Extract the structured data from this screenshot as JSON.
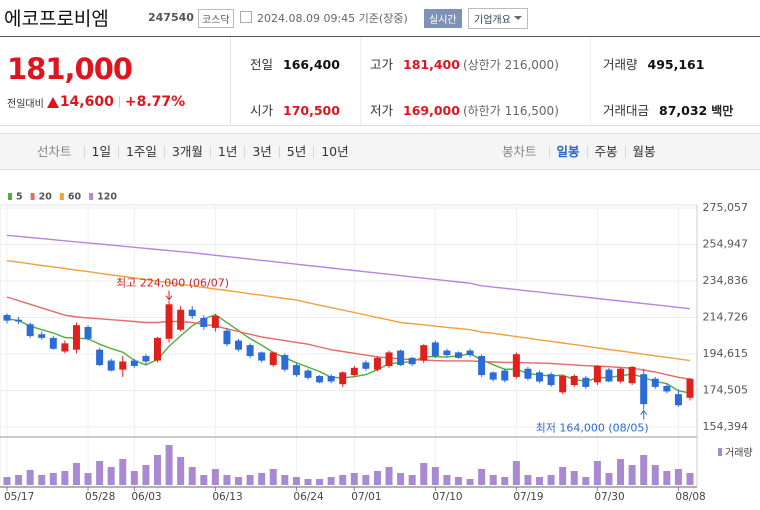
{
  "header": {
    "name": "에코프로비엠",
    "code": "247540",
    "market": "코스닥",
    "timestamp": "2024.08.09 09:45 기준(장중)",
    "realtime_button": "실시간",
    "company_button": "기업개요"
  },
  "price": {
    "current": "181,000",
    "change_label": "전일대비",
    "change": "14,600",
    "change_pct": "+8.77%",
    "color": "#e0141e"
  },
  "stats": [
    {
      "label": "전일",
      "value": "166,400",
      "color": "#111"
    },
    {
      "label": "고가",
      "value": "181,400",
      "sub": "(상한가 216,000)",
      "color": "#e0141e"
    },
    {
      "label": "거래량",
      "value": "495,161",
      "color": "#111"
    },
    {
      "label": "시가",
      "value": "170,500",
      "color": "#e0141e"
    },
    {
      "label": "저가",
      "value": "169,000",
      "sub": "(하한가 116,500)",
      "color": "#e0141e"
    },
    {
      "label": "거래대금",
      "value": "87,032",
      "unit": "백만",
      "color": "#111"
    }
  ],
  "tabs": {
    "line_chart_label": "선차트",
    "periods": [
      "1일",
      "1주일",
      "3개월",
      "1년",
      "3년",
      "5년",
      "10년"
    ],
    "candle_chart_label": "봉차트",
    "candle_periods": [
      "일봉",
      "주봉",
      "월봉"
    ],
    "selected_candle_period": 0
  },
  "chart_data": {
    "type": "candlestick",
    "categories": [
      "05/17",
      null,
      null,
      null,
      null,
      null,
      null,
      "05/28",
      null,
      null,
      null,
      "06/03",
      null,
      null,
      null,
      null,
      null,
      null,
      "06/13",
      null,
      null,
      null,
      null,
      null,
      null,
      "06/24",
      null,
      null,
      null,
      null,
      "07/01",
      null,
      null,
      null,
      null,
      null,
      null,
      "07/10",
      null,
      null,
      null,
      null,
      null,
      null,
      "07/19",
      null,
      null,
      null,
      null,
      null,
      null,
      "07/30",
      null,
      null,
      null,
      null,
      null,
      null,
      "08/08",
      null
    ],
    "open": [
      216100,
      213500,
      211000,
      205500,
      203500,
      196000,
      197000,
      209500,
      197000,
      191000,
      186000,
      191000,
      193500,
      191000,
      203000,
      208000,
      219000,
      214500,
      209000,
      207500,
      202000,
      199500,
      195500,
      188500,
      194000,
      188500,
      185500,
      182500,
      182500,
      178000,
      183000,
      190000,
      186000,
      188000,
      196500,
      192500,
      191000,
      201000,
      196500,
      195500,
      196500,
      193500,
      184500,
      185500,
      182000,
      186500,
      184500,
      183500,
      173500,
      177500,
      181500,
      179000,
      186000,
      179500,
      178500,
      183500,
      181000,
      177000,
      172500,
      170500
    ],
    "high": [
      217000,
      215000,
      212000,
      207000,
      204500,
      202000,
      212000,
      210500,
      198000,
      192000,
      193500,
      192000,
      194500,
      204000,
      224000,
      221000,
      221000,
      216000,
      216500,
      209000,
      203000,
      200500,
      196000,
      196000,
      195000,
      189500,
      186500,
      183000,
      183500,
      185000,
      188000,
      191000,
      193500,
      196500,
      197000,
      193000,
      200000,
      202000,
      197500,
      196000,
      197500,
      194500,
      185000,
      186500,
      195500,
      187500,
      185500,
      184500,
      183000,
      183500,
      182500,
      188500,
      187000,
      187000,
      188000,
      186500,
      182000,
      178000,
      175000,
      181400
    ],
    "low": [
      211500,
      211000,
      203500,
      202500,
      197000,
      195000,
      195000,
      202000,
      188000,
      185000,
      182000,
      187000,
      189000,
      190000,
      201000,
      207000,
      214000,
      208000,
      207000,
      199000,
      196000,
      192500,
      190000,
      187500,
      185000,
      182000,
      180500,
      178500,
      178500,
      176500,
      182000,
      185500,
      185000,
      187000,
      188000,
      188000,
      189500,
      192500,
      193000,
      192000,
      193000,
      182000,
      179500,
      179000,
      181000,
      180000,
      178500,
      176500,
      172500,
      176500,
      175500,
      177500,
      179000,
      178500,
      177500,
      164000,
      175500,
      173000,
      165500,
      169000
    ],
    "close": [
      213000,
      212500,
      204500,
      203500,
      197500,
      200500,
      210500,
      203000,
      188500,
      185500,
      190500,
      188000,
      190500,
      203500,
      222000,
      219000,
      215500,
      209500,
      215500,
      200000,
      197000,
      193500,
      191000,
      195500,
      186000,
      183000,
      181500,
      179000,
      179500,
      184500,
      187000,
      186500,
      192500,
      195500,
      188500,
      189000,
      199500,
      193500,
      194000,
      192500,
      194000,
      183000,
      180500,
      180000,
      194500,
      181000,
      179500,
      177500,
      182500,
      182500,
      176500,
      188000,
      179500,
      186500,
      187500,
      167000,
      176500,
      174000,
      166400,
      181000
    ],
    "volume": [
      328000,
      410000,
      615000,
      410000,
      492000,
      574000,
      902000,
      492000,
      984000,
      738000,
      1066000,
      574000,
      820000,
      1230000,
      1640000,
      1148000,
      738000,
      410000,
      656000,
      410000,
      328000,
      410000,
      492000,
      656000,
      410000,
      328000,
      246000,
      246000,
      328000,
      410000,
      492000,
      410000,
      574000,
      738000,
      492000,
      410000,
      902000,
      738000,
      410000,
      328000,
      246000,
      656000,
      410000,
      328000,
      984000,
      410000,
      328000,
      410000,
      738000,
      574000,
      328000,
      984000,
      492000,
      1066000,
      820000,
      1230000,
      820000,
      574000,
      656000,
      495161
    ],
    "volume_label": "거래량",
    "volume_color": "#a98ad2",
    "up_color": "#e0201c",
    "down_color": "#2b6cd6",
    "series": [
      {
        "name": "5",
        "color": "#4fae3a",
        "values": [
          214000,
          213000,
          210000,
          208000,
          206200,
          203700,
          203300,
          203000,
          200000,
          197600,
          195600,
          191100,
          188600,
          191600,
          198900,
          204600,
          210100,
          213900,
          216300,
          211900,
          207500,
          203100,
          199500,
          195400,
          192600,
          189800,
          187400,
          185000,
          181800,
          181500,
          182100,
          183300,
          186000,
          189200,
          190000,
          190400,
          193000,
          193200,
          192900,
          193700,
          194700,
          191400,
          188700,
          186200,
          186300,
          183800,
          183100,
          182500,
          183000,
          180600,
          179600,
          181400,
          181800,
          182600,
          183600,
          181700,
          179500,
          178300,
          174400,
          173100
        ]
      },
      {
        "name": "20",
        "color": "#e66a66",
        "values": [
          226000,
          224000,
          222000,
          220000,
          218000,
          216000,
          215000,
          214500,
          214000,
          213500,
          213000,
          212500,
          212000,
          212000,
          212500,
          212500,
          212000,
          211000,
          210000,
          208500,
          207000,
          205500,
          204000,
          203000,
          202000,
          201000,
          200000,
          198500,
          197000,
          196000,
          195000,
          194000,
          193000,
          192500,
          192000,
          191500,
          191300,
          191000,
          190800,
          190800,
          190800,
          190500,
          190200,
          190000,
          190000,
          189800,
          189600,
          189400,
          189000,
          188600,
          188200,
          188000,
          187600,
          187200,
          186800,
          185800,
          184700,
          183200,
          181800,
          180800
        ]
      },
      {
        "name": "60",
        "color": "#f2a03c",
        "values": [
          246000,
          245200,
          244300,
          243400,
          242600,
          241700,
          240800,
          240000,
          239100,
          238200,
          237400,
          236500,
          235600,
          234800,
          233900,
          233000,
          232200,
          231300,
          230400,
          229600,
          228700,
          227800,
          227000,
          226100,
          225200,
          224300,
          222900,
          221500,
          220200,
          218800,
          217500,
          216100,
          214700,
          213400,
          212000,
          211300,
          210700,
          210000,
          209300,
          208700,
          208000,
          206700,
          206000,
          205100,
          204200,
          203300,
          202400,
          201600,
          200700,
          199800,
          198900,
          198000,
          197100,
          196300,
          195400,
          194500,
          193600,
          192800,
          191900,
          191000
        ]
      },
      {
        "name": "120",
        "color": "#b586dc",
        "values": [
          260000,
          259400,
          258800,
          258200,
          257600,
          257000,
          256400,
          255800,
          255200,
          254600,
          254000,
          253400,
          252800,
          252200,
          251600,
          251000,
          250400,
          249700,
          249000,
          248300,
          247600,
          246900,
          246200,
          245500,
          244800,
          244100,
          243400,
          242700,
          242000,
          241300,
          240600,
          239900,
          239200,
          238500,
          237800,
          237100,
          236400,
          235700,
          235000,
          234300,
          233600,
          232200,
          231500,
          230800,
          230100,
          229400,
          228700,
          228000,
          227300,
          226600,
          225900,
          225200,
          224500,
          223800,
          223100,
          222400,
          221700,
          221000,
          220300,
          219600
        ]
      }
    ],
    "ylim": [
      148900,
      276700
    ],
    "yticks": [
      {
        "value": 154394,
        "label": "154,394"
      },
      {
        "value": 174505,
        "label": "174,505"
      },
      {
        "value": 194615,
        "label": "194,615"
      },
      {
        "value": 214726,
        "label": "214,726"
      },
      {
        "value": 234836,
        "label": "234,836"
      },
      {
        "value": 254947,
        "label": "254,947"
      },
      {
        "value": 275057,
        "label": "275,057"
      }
    ],
    "grid": true,
    "high_annotation": {
      "label": "최고 224,000 (06/07)",
      "value": 224000
    },
    "low_annotation": {
      "label": "최저 164,000 (08/05)",
      "value": 164000
    }
  }
}
